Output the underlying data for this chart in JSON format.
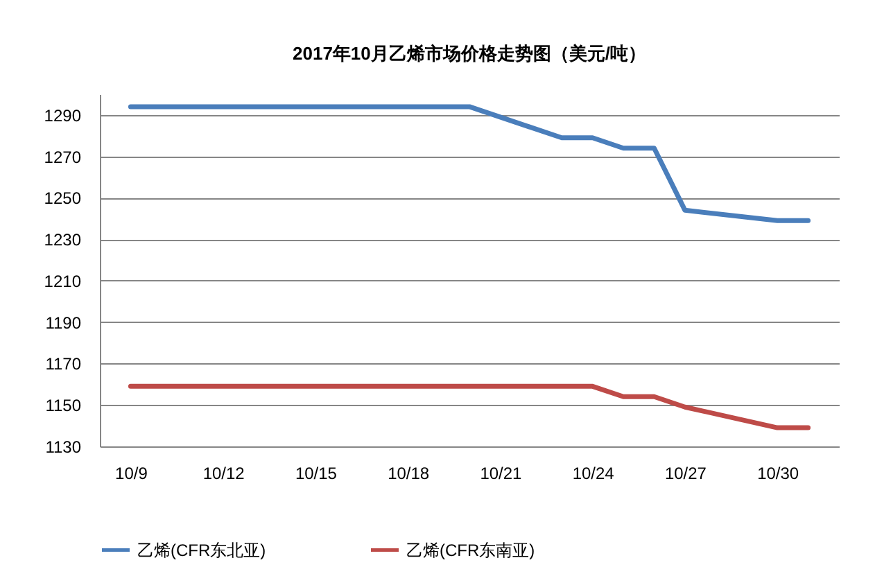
{
  "chart_data": {
    "type": "line",
    "title": "2017年10月乙烯市场价格走势图（美元/吨）",
    "x": [
      "--10-09",
      "--10-10",
      "--10-11",
      "--10-12",
      "--10-13",
      "--10-16",
      "--10-17",
      "--10-18",
      "--10-19",
      "--10-20",
      "--10-23",
      "--10-24",
      "--10-25",
      "--10-26",
      "--10-27",
      "--10-30",
      "--10-31"
    ],
    "series": [
      {
        "name": "乙烯(CFR东北亚)",
        "color": "#4a7ebb",
        "values": [
          1294,
          1294,
          1294,
          1294,
          1294,
          1294,
          1294,
          1294,
          1294,
          1294,
          1279,
          1279,
          1274,
          1274,
          1244,
          1239,
          1239
        ]
      },
      {
        "name": "乙烯(CFR东南亚)",
        "color": "#be4b48",
        "values": [
          1159,
          1159,
          1159,
          1159,
          1159,
          1159,
          1159,
          1159,
          1159,
          1159,
          1159,
          1159,
          1154,
          1154,
          1149,
          1139,
          1139
        ]
      }
    ],
    "xlim": [
      "--10-08",
      "--11-01"
    ],
    "xticks": [
      {
        "value": "--10-09",
        "label": "10/9"
      },
      {
        "value": "--10-12",
        "label": "10/12"
      },
      {
        "value": "--10-15",
        "label": "10/15"
      },
      {
        "value": "--10-18",
        "label": "10/18"
      },
      {
        "value": "--10-21",
        "label": "10/21"
      },
      {
        "value": "--10-24",
        "label": "10/24"
      },
      {
        "value": "--10-27",
        "label": "10/27"
      },
      {
        "value": "--10-30",
        "label": "10/30"
      }
    ],
    "ylim": [
      1130,
      1300
    ],
    "yticks": [
      1130,
      1150,
      1170,
      1190,
      1210,
      1230,
      1250,
      1270,
      1290
    ],
    "grid": "y",
    "legend": "bottom",
    "marker": "none",
    "line_style": "solid"
  }
}
